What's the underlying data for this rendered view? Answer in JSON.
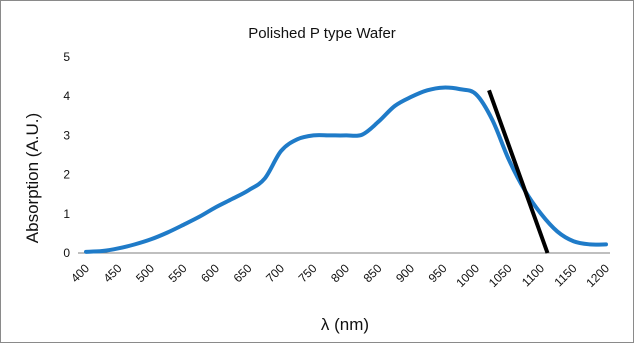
{
  "chart_data": {
    "type": "line",
    "title": "Polished P type Wafer",
    "xlabel": "λ (nm)",
    "ylabel": "Absorption (A.U.)",
    "xlim": [
      400,
      1200
    ],
    "ylim": [
      0,
      5
    ],
    "x_ticks": [
      "400",
      "450",
      "500",
      "550",
      "600",
      "650",
      "700",
      "750",
      "800",
      "850",
      "900",
      "950",
      "1000",
      "1050",
      "1100",
      "1150",
      "1200"
    ],
    "y_ticks": [
      "0",
      "1",
      "2",
      "3",
      "4",
      "5"
    ],
    "grid": false,
    "legend": "none",
    "series": [
      {
        "color": "#1f7bc8",
        "x": [
          400,
          425,
          450,
          475,
          500,
          525,
          550,
          575,
          600,
          625,
          650,
          675,
          700,
          725,
          750,
          775,
          800,
          825,
          850,
          875,
          900,
          925,
          950,
          975,
          1000,
          1025,
          1050,
          1075,
          1100,
          1125,
          1150,
          1175,
          1200
        ],
        "y": [
          0.03,
          0.05,
          0.12,
          0.22,
          0.35,
          0.52,
          0.72,
          0.93,
          1.17,
          1.38,
          1.6,
          1.9,
          2.6,
          2.9,
          3.0,
          3.0,
          3.0,
          3.02,
          3.35,
          3.75,
          3.98,
          4.15,
          4.22,
          4.18,
          4.05,
          3.4,
          2.4,
          1.6,
          1.0,
          0.55,
          0.3,
          0.22,
          0.22
        ]
      }
    ],
    "tangent_line": {
      "color": "#000000",
      "x": [
        1020,
        1110
      ],
      "y": [
        4.15,
        0.0
      ]
    }
  }
}
